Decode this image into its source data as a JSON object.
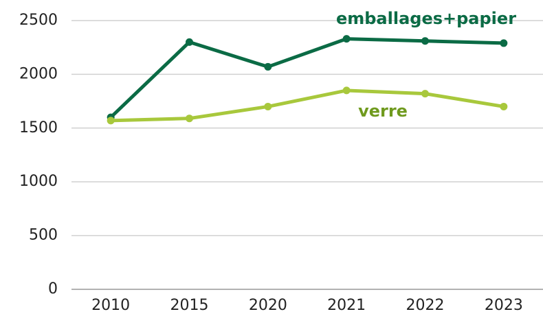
{
  "chart_data": {
    "type": "line",
    "categories": [
      "2010",
      "2015",
      "2020",
      "2021",
      "2022",
      "2023"
    ],
    "series": [
      {
        "name": "emballages+papier",
        "color": "#0b6b45",
        "label_color": "#0b6b45",
        "values": [
          1600,
          2300,
          2070,
          2330,
          2310,
          2290
        ]
      },
      {
        "name": "verre",
        "color": "#a8c83c",
        "label_color": "#6f9a1e",
        "values": [
          1570,
          1590,
          1700,
          1850,
          1820,
          1700
        ]
      }
    ],
    "ylim": [
      0,
      2500
    ],
    "yticks": [
      0,
      500,
      1000,
      1500,
      2000,
      2500
    ],
    "grid": true
  }
}
